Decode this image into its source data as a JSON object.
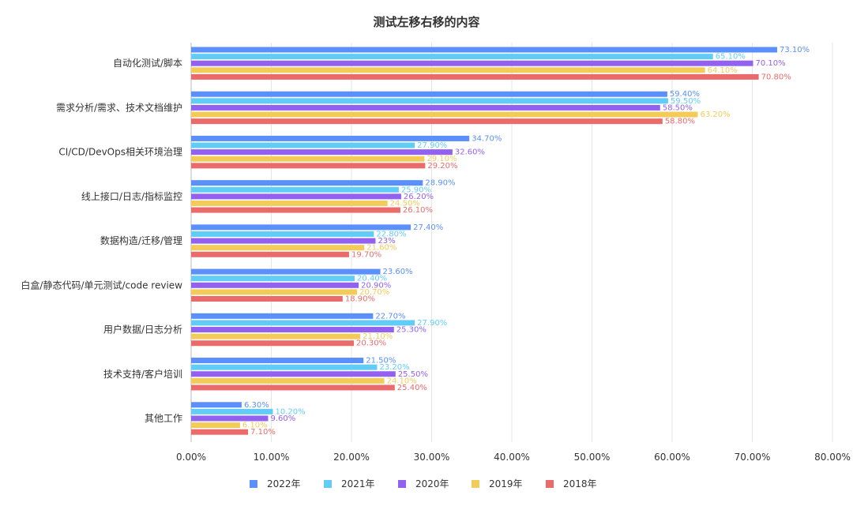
{
  "chart_data": {
    "type": "bar",
    "orientation": "horizontal",
    "title": "测试左移右移的内容",
    "categories": [
      "自动化测试/脚本",
      "需求分析/需求、技术文档维护",
      "CI/CD/DevOps相关环境治理",
      "线上接口/日志/指标监控",
      "数据构造/迁移/管理",
      "白盒/静态代码/单元测试/code review",
      "用户数据/日志分析",
      "技术支持/客户培训",
      "其他工作"
    ],
    "series": [
      {
        "name": "2022年",
        "color": "#5B8FF9",
        "values": [
          73.1,
          59.4,
          34.7,
          28.9,
          27.4,
          23.6,
          22.7,
          21.5,
          6.3
        ],
        "labels": [
          "73.10%",
          "59.40%",
          "34.70%",
          "28.90%",
          "27.40%",
          "23.60%",
          "22.70%",
          "21.50%",
          "6.30%"
        ]
      },
      {
        "name": "2021年",
        "color": "#61CDF6",
        "values": [
          65.1,
          59.5,
          27.9,
          25.9,
          22.8,
          20.4,
          27.9,
          23.2,
          10.2
        ],
        "labels": [
          "65.10%",
          "59.50%",
          "27.90%",
          "25.90%",
          "22.80%",
          "20.40%",
          "27.90%",
          "23.20%",
          "10.20%"
        ]
      },
      {
        "name": "2020年",
        "color": "#9361F0",
        "values": [
          70.1,
          58.5,
          32.6,
          26.2,
          23.0,
          20.9,
          25.3,
          25.5,
          9.6
        ],
        "labels": [
          "70.10%",
          "58.50%",
          "32.60%",
          "26.20%",
          "23%",
          "20.90%",
          "25.30%",
          "25.50%",
          "9.60%"
        ]
      },
      {
        "name": "2019年",
        "color": "#F2CB59",
        "values": [
          64.1,
          63.2,
          29.1,
          24.5,
          21.6,
          20.7,
          21.1,
          24.1,
          6.1
        ],
        "labels": [
          "64.10%",
          "63.20%",
          "29.10%",
          "24.50%",
          "21.60%",
          "20.70%",
          "21.10%",
          "24.10%",
          "6.10%"
        ]
      },
      {
        "name": "2018年",
        "color": "#EB6B6B",
        "values": [
          70.8,
          58.8,
          29.2,
          26.1,
          19.7,
          18.9,
          20.3,
          25.4,
          7.1
        ],
        "labels": [
          "70.80%",
          "58.80%",
          "29.20%",
          "26.10%",
          "19.70%",
          "18.90%",
          "20.30%",
          "25.40%",
          "7.10%"
        ]
      }
    ],
    "xlim": [
      0,
      80
    ],
    "xticks": [
      "0.00%",
      "10.00%",
      "20.00%",
      "30.00%",
      "40.00%",
      "50.00%",
      "60.00%",
      "70.00%",
      "80.00%"
    ],
    "grid": true,
    "legend_position": "bottom"
  }
}
